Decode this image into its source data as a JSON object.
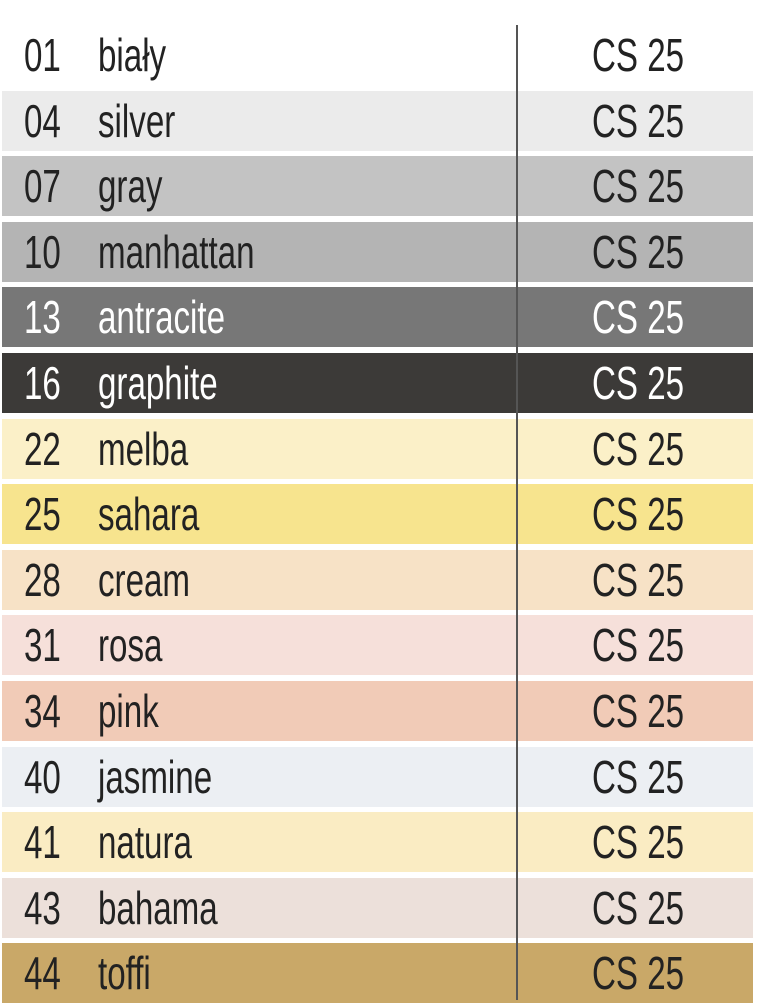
{
  "rows": [
    {
      "code": "01",
      "name": "biały",
      "product": "CS 25",
      "color": "#ffffff",
      "dark": false
    },
    {
      "code": "04",
      "name": "silver",
      "product": "CS 25",
      "color": "#ebebeb",
      "dark": false
    },
    {
      "code": "07",
      "name": "gray",
      "product": "CS 25",
      "color": "#c3c3c3",
      "dark": false
    },
    {
      "code": "10",
      "name": "manhattan",
      "product": "CS 25",
      "color": "#b4b4b4",
      "dark": false
    },
    {
      "code": "13",
      "name": "antracite",
      "product": "CS 25",
      "color": "#777777",
      "dark": true
    },
    {
      "code": "16",
      "name": "graphite",
      "product": "CS 25",
      "color": "#3c3a38",
      "dark": true
    },
    {
      "code": "22",
      "name": "melba",
      "product": "CS 25",
      "color": "#fbf0c8",
      "dark": false
    },
    {
      "code": "25",
      "name": "sahara",
      "product": "CS 25",
      "color": "#f7e48e",
      "dark": false
    },
    {
      "code": "28",
      "name": "cream",
      "product": "CS 25",
      "color": "#f7e2c6",
      "dark": false
    },
    {
      "code": "31",
      "name": "rosa",
      "product": "CS 25",
      "color": "#f6e0da",
      "dark": false
    },
    {
      "code": "34",
      "name": "pink",
      "product": "CS 25",
      "color": "#f1cbb7",
      "dark": false
    },
    {
      "code": "40",
      "name": "jasmine",
      "product": "CS 25",
      "color": "#eceff3",
      "dark": false
    },
    {
      "code": "41",
      "name": "natura",
      "product": "CS 25",
      "color": "#faecc3",
      "dark": false
    },
    {
      "code": "43",
      "name": "bahama",
      "product": "CS 25",
      "color": "#ece0da",
      "dark": false
    },
    {
      "code": "44",
      "name": "toffi",
      "product": "CS 25",
      "color": "#c9a868",
      "dark": false
    }
  ]
}
